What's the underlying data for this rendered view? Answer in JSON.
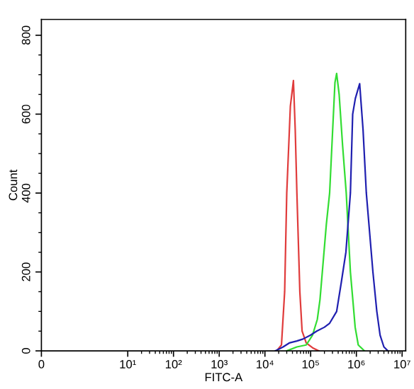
{
  "chart_data": {
    "type": "line",
    "xlabel": "FITC-A",
    "ylabel": "Count",
    "log": "x",
    "grid": false,
    "legend": false,
    "marker": "none",
    "line_style": "solid",
    "xlim": [
      0,
      12000000
    ],
    "xticks": [
      0,
      {
        "value": 10,
        "label": "10¹"
      },
      {
        "value": 100,
        "label": "10²"
      },
      {
        "value": 1000,
        "label": "10³"
      },
      {
        "value": 10000,
        "label": "10⁴"
      },
      {
        "value": 100000,
        "label": "10⁵"
      },
      {
        "value": 1000000,
        "label": "10⁶"
      },
      {
        "value": 10000000,
        "label": "10⁷"
      }
    ],
    "ylim": [
      0,
      840
    ],
    "yticks": [
      0,
      200,
      400,
      600,
      800
    ],
    "series": [
      {
        "color": "#e03c3c",
        "x": [
          18000,
          23000,
          27000,
          30000,
          36000,
          42000,
          46000,
          50000,
          58000,
          65000,
          80000,
          110000,
          150000
        ],
        "values": [
          0,
          15,
          150,
          400,
          620,
          685,
          560,
          400,
          150,
          50,
          20,
          8,
          0
        ]
      },
      {
        "color": "#33dd33",
        "x": [
          30000,
          50000,
          80000,
          110000,
          140000,
          160000,
          180000,
          220000,
          260000,
          300000,
          340000,
          370000,
          420000,
          500000,
          600000,
          740000,
          850000,
          940000,
          1100000,
          1500000
        ],
        "values": [
          0,
          10,
          15,
          40,
          80,
          130,
          200,
          320,
          400,
          550,
          680,
          703,
          650,
          520,
          400,
          200,
          120,
          60,
          15,
          0
        ]
      },
      {
        "color": "#2020b0",
        "x": [
          17000,
          25000,
          34000,
          50000,
          68000,
          100000,
          135000,
          200000,
          260000,
          370000,
          470000,
          590000,
          740000,
          830000,
          950000,
          1180000,
          1400000,
          1650000,
          2300000,
          2800000,
          3300000,
          4000000,
          4900000
        ],
        "values": [
          0,
          10,
          20,
          25,
          30,
          40,
          50,
          60,
          70,
          100,
          175,
          250,
          400,
          600,
          640,
          677,
          560,
          400,
          200,
          100,
          40,
          10,
          0
        ]
      }
    ]
  }
}
